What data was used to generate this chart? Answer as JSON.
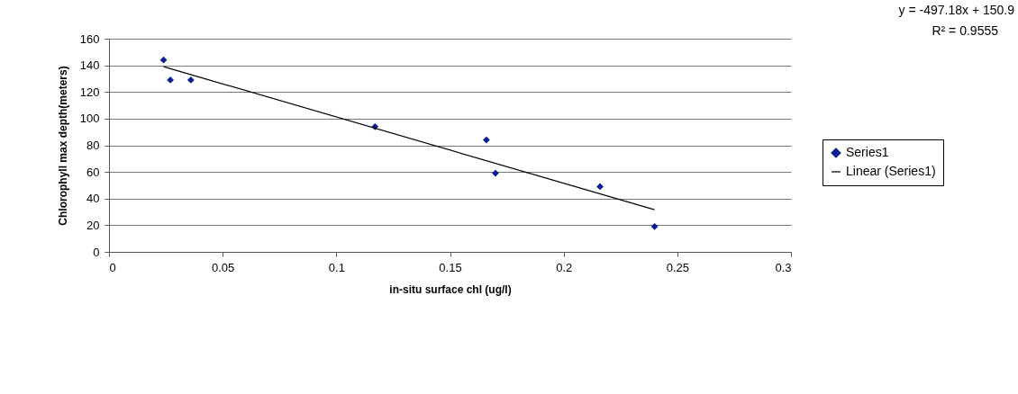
{
  "chart_data": {
    "type": "scatter",
    "xlabel": "in-situ surface chl (ug/l)",
    "ylabel": "Chlorophyll max depth(meters)",
    "xlim": [
      0,
      0.3
    ],
    "xticks": [
      0,
      0.05,
      0.1,
      0.15,
      0.2,
      0.25,
      0.3
    ],
    "ylim": [
      0,
      160
    ],
    "yticks": [
      0,
      20,
      40,
      60,
      80,
      100,
      120,
      140,
      160
    ],
    "grid": "y",
    "legend": "right",
    "marker": "diamond",
    "annotations": [
      "y = -497.18x + 150.9",
      "R² = 0.9555"
    ],
    "series": [
      {
        "name": "Series1",
        "color": "#0b1f8f",
        "x": [
          0.024,
          0.027,
          0.036,
          0.117,
          0.166,
          0.17,
          0.216,
          0.24
        ],
        "values": [
          144,
          129,
          129,
          94,
          84,
          59,
          49,
          19
        ]
      },
      {
        "name": "Linear (Series1)",
        "type": "line",
        "marker": "none",
        "color": "#000000",
        "x": [
          0.024,
          0.24
        ],
        "values": [
          139,
          31.6
        ]
      }
    ]
  }
}
